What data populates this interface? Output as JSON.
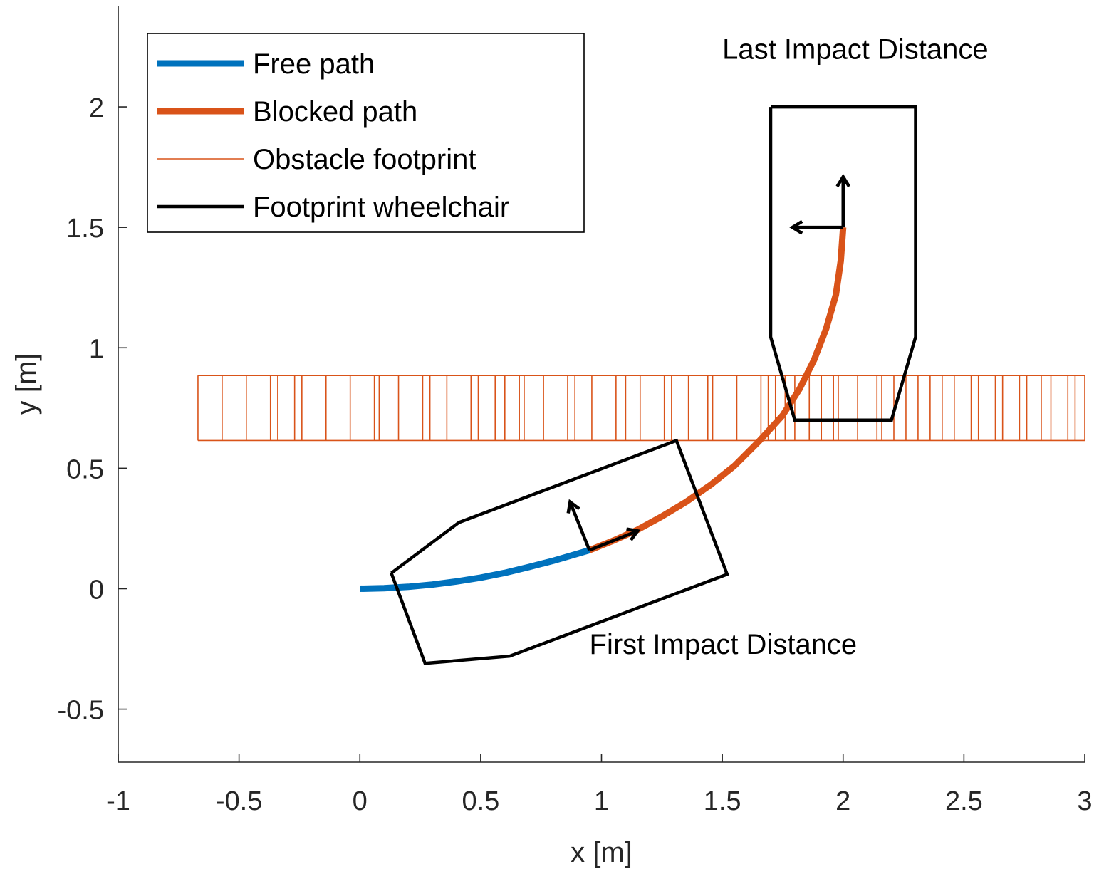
{
  "chart_data": {
    "type": "line",
    "xlabel": "x [m]",
    "ylabel": "y [m]",
    "xlim": [
      -1,
      3
    ],
    "ylim": [
      -0.72,
      2.42
    ],
    "xticks": [
      -1,
      -0.5,
      0,
      0.5,
      1,
      1.5,
      2,
      2.5,
      3
    ],
    "xtick_labels": [
      "-1",
      "-0.5",
      "0",
      "0.5",
      "1",
      "1.5",
      "2",
      "2.5",
      "3"
    ],
    "yticks": [
      -0.5,
      0,
      0.5,
      1,
      1.5,
      2
    ],
    "ytick_labels": [
      "-0.5",
      "0",
      "0.5",
      "1",
      "1.5",
      "2"
    ],
    "grid": false,
    "legend_position": "top-left",
    "legend": [
      {
        "label": "Free path",
        "color": "#0072BD",
        "style": "thick"
      },
      {
        "label": "Blocked path",
        "color": "#D95319",
        "style": "thick"
      },
      {
        "label": "Obstacle footprint",
        "color": "#D95319",
        "style": "thin"
      },
      {
        "label": "Footprint wheelchair",
        "color": "#000000",
        "style": "medium"
      }
    ],
    "annotations": [
      {
        "text": "Last Impact Distance",
        "x": 1.5,
        "y": 2.2
      },
      {
        "text": "First Impact Distance",
        "x": 0.95,
        "y": -0.27
      }
    ],
    "series": [
      {
        "name": "Free path",
        "color": "#0072BD",
        "x": [
          0,
          0.1,
          0.2,
          0.3,
          0.4,
          0.5,
          0.6,
          0.7,
          0.8,
          0.9,
          0.95
        ],
        "y": [
          0,
          0.002,
          0.008,
          0.017,
          0.03,
          0.046,
          0.066,
          0.09,
          0.116,
          0.145,
          0.16
        ]
      },
      {
        "name": "Blocked path",
        "color": "#D95319",
        "x": [
          0.95,
          1.05,
          1.15,
          1.25,
          1.35,
          1.45,
          1.55,
          1.65,
          1.75,
          1.82,
          1.88,
          1.93,
          1.97,
          1.99,
          2.0
        ],
        "y": [
          0.16,
          0.2,
          0.245,
          0.3,
          0.36,
          0.43,
          0.51,
          0.61,
          0.72,
          0.83,
          0.95,
          1.08,
          1.22,
          1.36,
          1.5
        ]
      }
    ],
    "obstacle": {
      "name": "Obstacle footprint",
      "color": "#D95319",
      "y_bottom": 0.615,
      "y_top": 0.885,
      "x_start": -0.67,
      "x_end": 3.0,
      "x_lines": [
        -0.67,
        -0.57,
        -0.47,
        -0.37,
        -0.34,
        -0.27,
        -0.24,
        -0.14,
        -0.04,
        0.06,
        0.08,
        0.16,
        0.26,
        0.29,
        0.36,
        0.46,
        0.49,
        0.56,
        0.6,
        0.66,
        0.68,
        0.76,
        0.86,
        0.89,
        0.96,
        1.06,
        1.1,
        1.16,
        1.26,
        1.29,
        1.36,
        1.44,
        1.46,
        1.56,
        1.66,
        1.69,
        1.72,
        1.76,
        1.8,
        1.86,
        1.91,
        1.96,
        1.98,
        2.06,
        2.14,
        2.16,
        2.21,
        2.26,
        2.31,
        2.36,
        2.41,
        2.46,
        2.53,
        2.56,
        2.63,
        2.66,
        2.73,
        2.76,
        2.82,
        2.86,
        2.93,
        2.96,
        3.0
      ]
    },
    "wheelchairs": [
      {
        "name": "Footprint wheelchair",
        "label": "First Impact Distance",
        "color": "#000000",
        "polygon": [
          [
            0.13,
            0.065
          ],
          [
            0.41,
            0.275
          ],
          [
            1.31,
            0.615
          ],
          [
            1.52,
            0.06
          ],
          [
            0.62,
            -0.28
          ],
          [
            0.27,
            -0.31
          ],
          [
            0.13,
            0.065
          ]
        ],
        "pose": {
          "x": 0.95,
          "y": 0.16
        },
        "arrows": [
          {
            "dx": 0.2,
            "dy": 0.08
          },
          {
            "dx": -0.08,
            "dy": 0.2
          }
        ]
      },
      {
        "name": "Footprint wheelchair",
        "label": "Last Impact Distance",
        "color": "#000000",
        "polygon": [
          [
            1.7,
            2.0
          ],
          [
            2.3,
            2.0
          ],
          [
            2.3,
            1.045
          ],
          [
            2.2,
            0.7
          ],
          [
            1.8,
            0.7
          ],
          [
            1.7,
            1.045
          ],
          [
            1.7,
            2.0
          ]
        ],
        "pose": {
          "x": 2.0,
          "y": 1.5
        },
        "arrows": [
          {
            "dx": 0,
            "dy": 0.21
          },
          {
            "dx": -0.21,
            "dy": 0
          }
        ]
      }
    ]
  }
}
